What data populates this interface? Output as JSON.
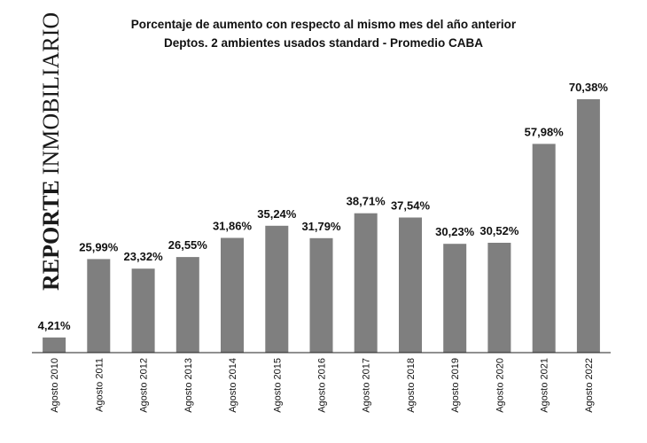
{
  "chart_data": {
    "type": "bar",
    "title": "Porcentaje de aumento con respecto al mismo mes del año anterior",
    "subtitle": "Deptos. 2 ambientes usados standard - Promedio CABA",
    "categories": [
      "Agosto 2010",
      "Agosto 2011",
      "Agosto 2012",
      "Agosto 2013",
      "Agosto 2014",
      "Agosto 2015",
      "Agosto 2016",
      "Agosto 2017",
      "Agosto 2018",
      "Agosto 2019",
      "Agosto 2020",
      "Agosto 2021",
      "Agosto 2022"
    ],
    "values": [
      4.21,
      25.99,
      23.32,
      26.55,
      31.86,
      35.24,
      31.79,
      38.71,
      37.54,
      30.23,
      30.52,
      57.98,
      70.38
    ],
    "labels": [
      "4,21%",
      "25,99%",
      "23,32%",
      "26,55%",
      "31,86%",
      "35,24%",
      "31,79%",
      "38,71%",
      "37,54%",
      "30,23%",
      "30,52%",
      "57,98%",
      "70,38%"
    ],
    "xlabel": "",
    "ylabel": "",
    "ylim": [
      0,
      75
    ],
    "grid": false,
    "bar_color": "#7f7f7f",
    "watermark_bold": "REPORTE",
    "watermark_regular": "INMOBILIARIO"
  }
}
